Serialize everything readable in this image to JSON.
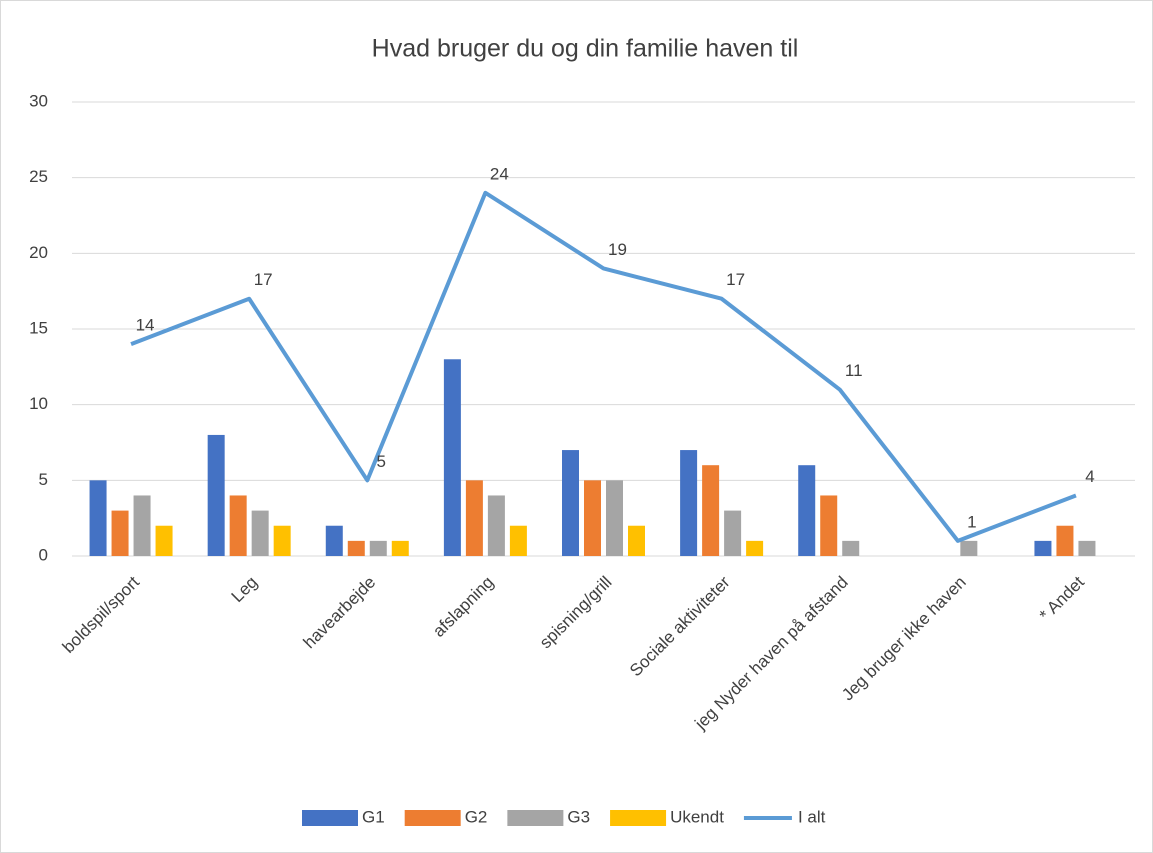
{
  "chart_data": {
    "type": "bar",
    "title": "Hvad bruger du og din familie haven til",
    "categories": [
      "boldspil/sport",
      "Leg",
      "havearbejde",
      "afslapning",
      "spisning/grill",
      "Sociale aktiviteter",
      "jeg Nyder haven på afstand",
      "Jeg bruger ikke haven",
      "* Andet"
    ],
    "series": [
      {
        "name": "G1",
        "type": "bar",
        "color": "#4472c4",
        "values": [
          5,
          8,
          2,
          13,
          7,
          7,
          6,
          null,
          1
        ]
      },
      {
        "name": "G2",
        "type": "bar",
        "color": "#ed7d31",
        "values": [
          3,
          4,
          1,
          5,
          5,
          6,
          4,
          null,
          2
        ]
      },
      {
        "name": "G3",
        "type": "bar",
        "color": "#a5a5a5",
        "values": [
          4,
          3,
          1,
          4,
          5,
          3,
          1,
          1,
          1
        ]
      },
      {
        "name": "Ukendt",
        "type": "bar",
        "color": "#ffc000",
        "values": [
          2,
          2,
          1,
          2,
          2,
          1,
          null,
          null,
          null
        ]
      },
      {
        "name": "I alt",
        "type": "line",
        "color": "#5b9bd5",
        "values": [
          14,
          17,
          5,
          24,
          19,
          17,
          11,
          1,
          4
        ]
      }
    ],
    "ylim": [
      0,
      30
    ],
    "yticks": [
      0,
      5,
      10,
      15,
      20,
      25,
      30
    ],
    "grid": true,
    "legend": "bottom"
  }
}
